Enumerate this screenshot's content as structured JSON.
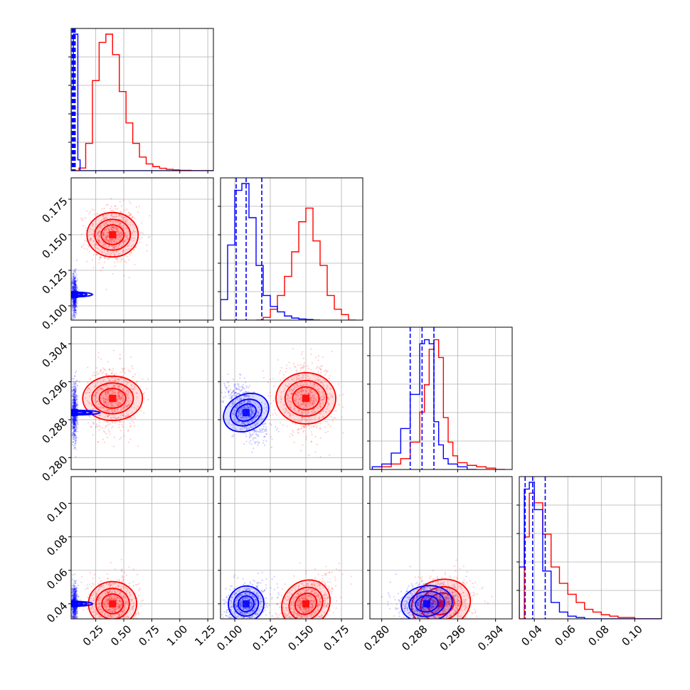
{
  "chart_data": {
    "type": "corner",
    "title": "",
    "colors": {
      "series_a": "#ff0000",
      "series_b": "#0000ff"
    },
    "grid": true,
    "variables": [
      {
        "xlim": [
          0.03,
          1.3
        ],
        "ticks": [
          0.25,
          0.5,
          0.75,
          1.0,
          1.25
        ],
        "tick_labels": [
          "0.25",
          "0.50",
          "0.75",
          "1.00",
          "1.25"
        ]
      },
      {
        "xlim": [
          0.09,
          0.19
        ],
        "ticks": [
          0.1,
          0.125,
          0.15,
          0.175
        ],
        "tick_labels": [
          "0.100",
          "0.125",
          "0.150",
          "0.175"
        ]
      },
      {
        "xlim": [
          0.2775,
          0.3075
        ],
        "ticks": [
          0.28,
          0.288,
          0.296,
          0.304
        ],
        "tick_labels": [
          "0.280",
          "0.288",
          "0.296",
          "0.304"
        ]
      },
      {
        "xlim": [
          0.031,
          0.116
        ],
        "ticks": [
          0.04,
          0.06,
          0.08,
          0.1
        ],
        "tick_labels": [
          "0.04",
          "0.06",
          "0.08",
          "0.10"
        ]
      }
    ],
    "series": [
      {
        "color": "#ff0000",
        "means": [
          0.4,
          0.15,
          0.2925,
          0.04
        ],
        "sds": [
          0.11,
          0.01,
          0.0035,
          0.008
        ],
        "correlation": [
          [
            1,
            0,
            0,
            0
          ],
          [
            0,
            1,
            0,
            0.5
          ],
          [
            0,
            0,
            1,
            0.15
          ],
          [
            0,
            0.5,
            0.15,
            1
          ]
        ],
        "hist_edges": [
          [
            0.03,
            0.1,
            0.16,
            0.22,
            0.28,
            0.34,
            0.4,
            0.46,
            0.52,
            0.58,
            0.64,
            0.7,
            0.76,
            0.82,
            0.88,
            0.94,
            1.0,
            1.1,
            1.3
          ],
          [
            0.115,
            0.12,
            0.125,
            0.13,
            0.135,
            0.14,
            0.145,
            0.15,
            0.155,
            0.16,
            0.165,
            0.17,
            0.175,
            0.18,
            0.185
          ],
          [
            0.278,
            0.28,
            0.282,
            0.284,
            0.286,
            0.288,
            0.289,
            0.29,
            0.291,
            0.292,
            0.293,
            0.294,
            0.295,
            0.296,
            0.298,
            0.3,
            0.302,
            0.304,
            0.306
          ],
          [
            0.031,
            0.034,
            0.037,
            0.04,
            0.045,
            0.05,
            0.055,
            0.06,
            0.065,
            0.07,
            0.075,
            0.08,
            0.085,
            0.09,
            0.1,
            0.116
          ]
        ],
        "hist_heights": [
          [
            0.0,
            0.02,
            0.2,
            0.66,
            0.94,
            1.0,
            0.85,
            0.58,
            0.35,
            0.2,
            0.1,
            0.05,
            0.03,
            0.018,
            0.01,
            0.006,
            0.003,
            0.0
          ],
          [
            0.0,
            0.02,
            0.08,
            0.18,
            0.32,
            0.5,
            0.72,
            0.82,
            0.58,
            0.4,
            0.18,
            0.08,
            0.04,
            0.0
          ],
          [
            0.0,
            0.02,
            0.04,
            0.08,
            0.2,
            0.42,
            0.62,
            0.88,
            0.95,
            0.82,
            0.38,
            0.2,
            0.1,
            0.05,
            0.03,
            0.02,
            0.01,
            0.0
          ],
          [
            0.0,
            0.6,
            0.92,
            0.85,
            0.62,
            0.38,
            0.26,
            0.18,
            0.12,
            0.07,
            0.05,
            0.03,
            0.02,
            0.01,
            0.0
          ]
        ]
      },
      {
        "color": "#0000ff",
        "means": [
          0.06,
          0.108,
          0.2895,
          0.04
        ],
        "sds": [
          0.012,
          0.007,
          0.003,
          0.006
        ],
        "correlation": [
          [
            1,
            0,
            0,
            0
          ],
          [
            0,
            1,
            -0.5,
            0.3
          ],
          [
            0,
            -0.5,
            1,
            0.1
          ],
          [
            0,
            0.3,
            0.1,
            1
          ]
        ],
        "hist_edges": [
          [
            0.03,
            0.05,
            0.07,
            0.09,
            0.11,
            1.3
          ],
          [
            0.09,
            0.095,
            0.1,
            0.105,
            0.11,
            0.115,
            0.12,
            0.125,
            0.13,
            0.135,
            0.14,
            0.145,
            0.15,
            0.155,
            0.16
          ],
          [
            0.278,
            0.28,
            0.282,
            0.284,
            0.286,
            0.288,
            0.289,
            0.29,
            0.291,
            0.292,
            0.293,
            0.294,
            0.296,
            0.298,
            0.3
          ],
          [
            0.031,
            0.034,
            0.037,
            0.04,
            0.045,
            0.05,
            0.055,
            0.06,
            0.065,
            0.07,
            0.116
          ]
        ],
        "hist_heights": [
          [
            0.6,
            1.0,
            1.0,
            0.08,
            0.0
          ],
          [
            0.15,
            0.55,
            0.95,
            1.0,
            0.75,
            0.4,
            0.18,
            0.1,
            0.06,
            0.03,
            0.015,
            0.008,
            0.004,
            0.0
          ],
          [
            0.02,
            0.04,
            0.12,
            0.3,
            0.55,
            0.92,
            0.95,
            0.92,
            0.35,
            0.18,
            0.08,
            0.04,
            0.02,
            0.0
          ],
          [
            0.38,
            0.95,
            1.0,
            0.8,
            0.35,
            0.12,
            0.05,
            0.02,
            0.01,
            0.0
          ]
        ],
        "quantile_lines": [
          [
            0.04,
            0.048,
            0.054,
            0.06,
            0.066
          ],
          [
            0.101,
            0.108,
            0.119
          ],
          [
            0.286,
            0.2885,
            0.291
          ],
          [
            0.0345,
            0.039,
            0.0465
          ]
        ]
      }
    ]
  }
}
